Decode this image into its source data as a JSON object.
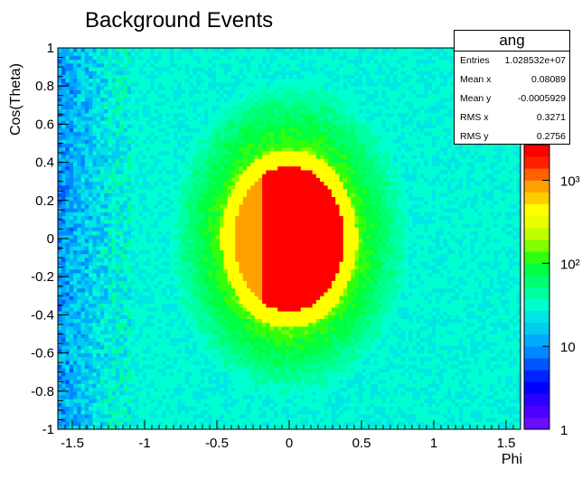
{
  "chart_data": {
    "type": "heatmap",
    "title": "Background Events",
    "xlabel": "Phi",
    "ylabel": "Cos(Theta)",
    "xlim": [
      -1.6,
      1.6
    ],
    "ylim": [
      -1,
      1
    ],
    "x_ticks": [
      "-1.5",
      "-1",
      "-0.5",
      "0",
      "0.5",
      "1",
      "1.5"
    ],
    "x_tick_values": [
      -1.5,
      -1,
      -0.5,
      0,
      0.5,
      1,
      1.5
    ],
    "y_ticks": [
      "1",
      "0.8",
      "0.6",
      "0.4",
      "0.2",
      "0",
      "-0.2",
      "-0.4",
      "-0.6",
      "-0.8",
      "-1"
    ],
    "y_tick_values": [
      1,
      0.8,
      0.6,
      0.4,
      0.2,
      0,
      -0.2,
      -0.4,
      -0.6,
      -0.8,
      -1
    ],
    "z_scale": "log",
    "z_ticks": [
      "1",
      "10",
      "10²",
      "10³"
    ],
    "z_tick_values": [
      1,
      10,
      100,
      1000
    ],
    "palette": [
      "#6a0dff",
      "#4b00ff",
      "#2a00ff",
      "#0000ff",
      "#0022ff",
      "#0055ff",
      "#0088ff",
      "#00aaff",
      "#00ccee",
      "#00e5e5",
      "#00ffd0",
      "#00ffa0",
      "#00ff70",
      "#00ff40",
      "#30ff10",
      "#80ff00",
      "#c0ff00",
      "#e8ff00",
      "#ffff00",
      "#ffcc00",
      "#ffa000",
      "#ff6000",
      "#ff2000",
      "#ff0000"
    ],
    "structure": {
      "background_level": 0.42,
      "center": [
        0.0,
        0.0
      ],
      "core": {
        "rx": 0.38,
        "ry": 0.38,
        "left_cut_phi": -0.18,
        "left_color": "#ffa000",
        "right_color": "#ff0000"
      },
      "ring_color": "#ffff00"
    },
    "stats": {
      "name": "ang",
      "entries": [
        {
          "label": "Entries",
          "value": "1.028532e+07"
        },
        {
          "label": "Mean x",
          "value": "0.08089"
        },
        {
          "label": "Mean y",
          "value": "-0.0005929"
        },
        {
          "label": "RMS x",
          "value": "0.3271"
        },
        {
          "label": "RMS y",
          "value": "0.2756"
        }
      ]
    }
  }
}
